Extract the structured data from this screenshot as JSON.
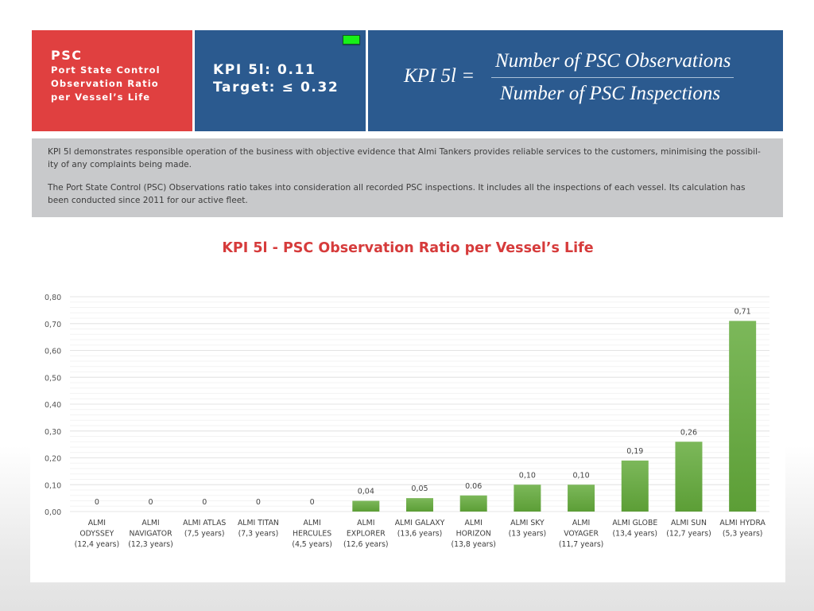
{
  "header": {
    "section_code": "PSC",
    "section_title_lines": [
      "Port State Control",
      "Observation Ratio",
      "per Vessel’s Life"
    ],
    "kpi_value_label": "KPI 5l: 0.11",
    "target_label": "Target: ≤ 0.32",
    "status_indicator_color": "#18f018",
    "formula": {
      "lhs": "KPI 5l =",
      "numerator": "Number of PSC Observations",
      "denominator": "Number of PSC Inspections"
    }
  },
  "description": {
    "paragraphs": [
      "KPI 5l demonstrates responsible operation of the business with objective evidence that Almi Tankers provides reliable services to the customers, minimising the possibil-ity of any complaints being made.",
      "The Port State Control (PSC) Observations ratio takes into consideration all recorded PSC inspections. It includes all the inspections of each vessel. Its calculation has been conducted since 2011 for our active fleet."
    ]
  },
  "colors": {
    "red_panel": "#e04040",
    "blue_panel": "#2b5a8f",
    "description_bg": "#c8c9cb",
    "title_red": "#d63b3b",
    "bar_top": "#7cb85a",
    "bar_bottom": "#5c9e36"
  },
  "chart_data": {
    "type": "bar",
    "title": "KPI 5l - PSC Observation Ratio per Vessel’s Life",
    "xlabel": "",
    "ylabel": "",
    "ylim": [
      0,
      0.8
    ],
    "yticks": [
      0,
      0.1,
      0.2,
      0.3,
      0.4,
      0.5,
      0.6,
      0.7,
      0.8
    ],
    "ytick_labels": [
      "0,00",
      "0,10",
      "0,20",
      "0,30",
      "0,40",
      "0,50",
      "0,60",
      "0,70",
      "0,80"
    ],
    "grid": true,
    "legend": "none",
    "categories": [
      [
        "ALMI",
        "ODYSSEY",
        "(12,4 years)"
      ],
      [
        "ALMI",
        "NAVIGATOR",
        "(12,3 years)"
      ],
      [
        "ALMI ATLAS",
        "(7,5 years)"
      ],
      [
        "ALMI TITAN",
        "(7,3 years)"
      ],
      [
        "ALMI",
        "HERCULES",
        "(4,5 years)"
      ],
      [
        "ALMI",
        "EXPLORER",
        "(12,6 years)"
      ],
      [
        "ALMI GALAXY",
        "(13,6 years)"
      ],
      [
        "ALMI",
        "HORIZON",
        "(13,8  years)"
      ],
      [
        "ALMI SKY",
        "(13 years)"
      ],
      [
        "ALMI",
        "VOYAGER",
        "(11,7  years)"
      ],
      [
        "ALMI GLOBE",
        "(13,4 years)"
      ],
      [
        "ALMI SUN",
        "(12,7  years)"
      ],
      [
        "ALMI HYDRA",
        "(5,3  years)"
      ]
    ],
    "values": [
      0,
      0,
      0,
      0,
      0,
      0.04,
      0.05,
      0.06,
      0.1,
      0.1,
      0.19,
      0.26,
      0.71
    ],
    "data_labels": [
      "0",
      "0",
      "0",
      "0",
      "0",
      "0,04",
      "0,05",
      "0.06",
      "0,10",
      "0,10",
      "0,19",
      "0,26",
      "0,71"
    ]
  }
}
